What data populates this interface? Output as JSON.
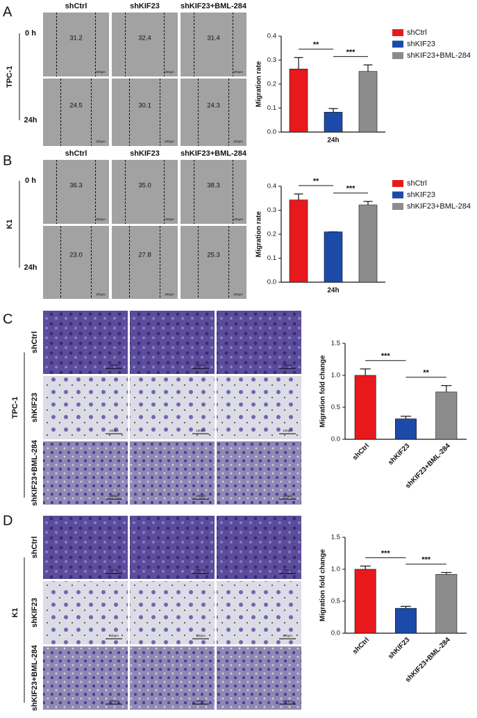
{
  "panels": [
    {
      "letter": "A",
      "cell_line": "TPC-1",
      "columns": [
        "shCtrl",
        "shKIF23",
        "shKIF23+BML-284"
      ],
      "rows": [
        "0 h",
        "24h"
      ],
      "measurements": [
        [
          "31.2",
          "32.4",
          "31.4"
        ],
        [
          "24.5",
          "30.1",
          "24.3"
        ]
      ],
      "scale_bar": "200μm"
    },
    {
      "letter": "B",
      "cell_line": "K1",
      "columns": [
        "shCtrl",
        "shKIF23",
        "shKIF23+BML-284"
      ],
      "rows": [
        "0 h",
        "24h"
      ],
      "measurements": [
        [
          "36.3",
          "35.0",
          "38.3"
        ],
        [
          "23.0",
          "27.8",
          "25.3"
        ]
      ],
      "scale_bar": "200μm"
    },
    {
      "letter": "C",
      "cell_line": "TPC-1",
      "rows": [
        "shCtrl",
        "shKIF23",
        "shKIF23+BML-284"
      ],
      "scale_bar": "100μm"
    },
    {
      "letter": "D",
      "cell_line": "K1",
      "rows": [
        "shCtrl",
        "shKIF23",
        "shKIF23+BML-284"
      ],
      "scale_bar": "100μm"
    }
  ],
  "chart_data": [
    {
      "type": "bar",
      "ylabel": "Migration rate",
      "xlabel": "24h",
      "categories": [
        "24h"
      ],
      "series": [
        {
          "name": "shCtrl",
          "color": "#e8191c",
          "values": [
            0.263
          ],
          "errors": [
            0.048
          ]
        },
        {
          "name": "shKIF23",
          "color": "#1c4aa8",
          "values": [
            0.083
          ],
          "errors": [
            0.015
          ]
        },
        {
          "name": "shKIF23+BML-284",
          "color": "#8c8c8c",
          "values": [
            0.253
          ],
          "errors": [
            0.027
          ]
        }
      ],
      "ylim": [
        0,
        0.4
      ],
      "yticks": [
        {
          "value": 0,
          "label": "0.0"
        },
        0.1,
        0.2,
        0.3,
        0.4
      ],
      "annotations": [
        "**",
        "***"
      ]
    },
    {
      "type": "bar",
      "ylabel": "Migration rate",
      "xlabel": "24h",
      "categories": [
        "24h"
      ],
      "series": [
        {
          "name": "shCtrl",
          "color": "#e8191c",
          "values": [
            0.343
          ],
          "errors": [
            0.025
          ]
        },
        {
          "name": "shKIF23",
          "color": "#1c4aa8",
          "values": [
            0.21
          ],
          "errors": [
            0
          ]
        },
        {
          "name": "shKIF23+BML-284",
          "color": "#8c8c8c",
          "values": [
            0.322
          ],
          "errors": [
            0.015
          ]
        }
      ],
      "ylim": [
        0,
        0.4
      ],
      "yticks": [
        {
          "value": 0,
          "label": "0.0"
        },
        0.1,
        0.2,
        0.3,
        0.4
      ],
      "annotations": [
        "**",
        "***"
      ]
    },
    {
      "type": "bar",
      "ylabel": "Migration fold change",
      "categories": [
        "shCtrl",
        "shKIF23",
        "shKIF23+BML-284"
      ],
      "values": [
        1.0,
        0.32,
        0.74
      ],
      "errors": [
        0.1,
        0.04,
        0.1
      ],
      "colors": [
        "#e8191c",
        "#1c4aa8",
        "#8c8c8c"
      ],
      "ylim": [
        0,
        1.5
      ],
      "yticks": [
        {
          "value": 0,
          "label": "0.0"
        },
        0.5,
        {
          "value": 1,
          "label": "1.0"
        },
        1.5
      ],
      "annotations": [
        "***",
        "**"
      ]
    },
    {
      "type": "bar",
      "ylabel": "Migration fold change",
      "categories": [
        "shCtrl",
        "shKIF23",
        "shKIF23+BML-284"
      ],
      "values": [
        1.0,
        0.39,
        0.92
      ],
      "errors": [
        0.05,
        0.03,
        0.03
      ],
      "colors": [
        "#e8191c",
        "#1c4aa8",
        "#8c8c8c"
      ],
      "ylim": [
        0,
        1.5
      ],
      "yticks": [
        {
          "value": 0,
          "label": "0.0"
        },
        0.5,
        {
          "value": 1,
          "label": "1.0"
        },
        1.5
      ],
      "annotations": [
        "***",
        "***"
      ]
    }
  ]
}
